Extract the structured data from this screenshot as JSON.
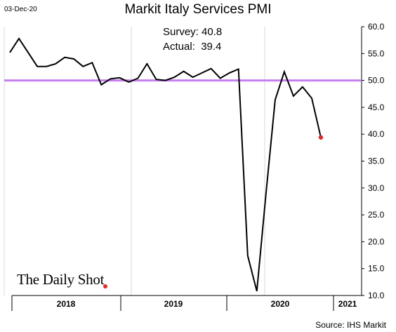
{
  "date_stamp": "03-Dec-20",
  "source": "Source: IHS Markit",
  "brand": {
    "name": "The Daily Shot",
    "mark": "®"
  },
  "chart_data": {
    "type": "line",
    "title": "Markit Italy Services PMI",
    "annotations": [
      "Survey: 40.8",
      "Actual:  39.4"
    ],
    "ylim": [
      10,
      60
    ],
    "yticks": [
      "60.0",
      "55.0",
      "50.0",
      "45.0",
      "40.0",
      "35.0",
      "30.0",
      "25.0",
      "20.0",
      "15.0",
      "10.0"
    ],
    "x_groups": [
      "2018",
      "2019",
      "2020",
      "2021"
    ],
    "x": [
      "2018-01",
      "2018-02",
      "2018-03",
      "2018-04",
      "2018-05",
      "2018-06",
      "2018-07",
      "2018-08",
      "2018-09",
      "2018-10",
      "2018-11",
      "2018-12",
      "2019-01",
      "2019-02",
      "2019-03",
      "2019-04",
      "2019-05",
      "2019-06",
      "2019-07",
      "2019-08",
      "2019-09",
      "2019-10",
      "2019-11",
      "2019-12",
      "2020-01",
      "2020-02",
      "2020-03",
      "2020-04",
      "2020-05",
      "2020-06",
      "2020-07",
      "2020-08",
      "2020-09",
      "2020-10",
      "2020-11"
    ],
    "series": [
      {
        "values": [
          55.2,
          57.8,
          55.2,
          52.6,
          52.6,
          53.1,
          54.3,
          54.0,
          52.6,
          53.3,
          49.2,
          50.3,
          50.5,
          49.7,
          50.4,
          53.1,
          50.2,
          50.0,
          50.6,
          51.7,
          50.6,
          51.4,
          52.2,
          50.4,
          51.4,
          52.1,
          17.4,
          10.8,
          28.9,
          46.4,
          51.6,
          47.1,
          48.8,
          46.7,
          39.4
        ],
        "color": "#000000"
      }
    ],
    "reference_line": {
      "y": 50,
      "color": "#c77ff0"
    },
    "last_point_marker_color": "#e0282c",
    "grid": "vertical"
  }
}
